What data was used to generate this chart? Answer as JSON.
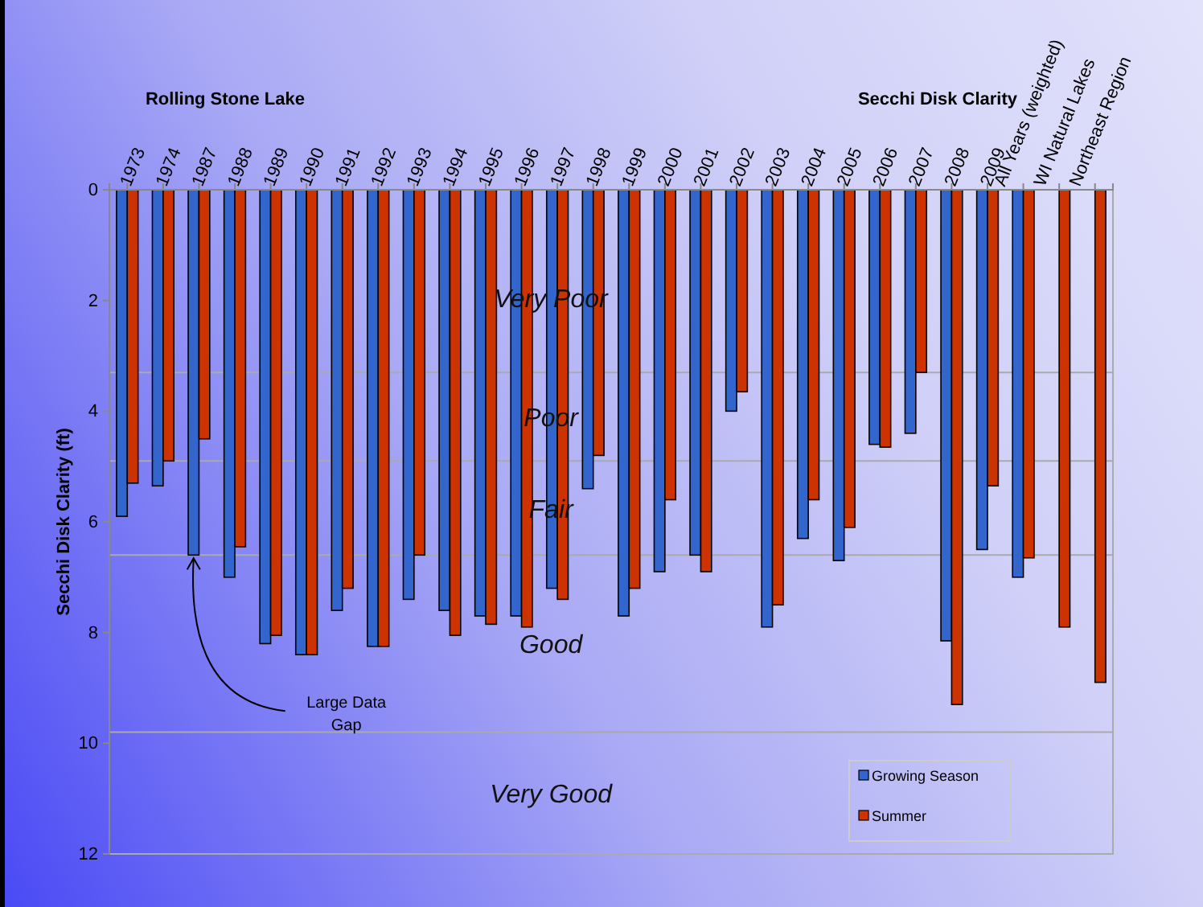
{
  "chart_data": {
    "type": "bar",
    "title": "Secchi Disk Clarity",
    "subtitle": "Rolling Stone Lake",
    "ylabel": "Secchi Disk Clarity (ft)",
    "categories": [
      "1973",
      "1974",
      "1987",
      "1988",
      "1989",
      "1990",
      "1991",
      "1992",
      "1993",
      "1994",
      "1995",
      "1996",
      "1997",
      "1998",
      "1999",
      "2000",
      "2001",
      "2002",
      "2003",
      "2004",
      "2005",
      "2006",
      "2007",
      "2008",
      "2009",
      "All Years (weighted)",
      "WI Natural Lakes",
      "Northeast Region"
    ],
    "series": [
      {
        "name": "Growing Season",
        "color": "#3366cc",
        "values": [
          5.9,
          5.35,
          6.6,
          7.0,
          8.2,
          8.4,
          7.6,
          8.25,
          7.4,
          7.6,
          7.7,
          7.7,
          7.2,
          5.4,
          7.7,
          6.9,
          6.6,
          4.0,
          7.9,
          6.3,
          6.7,
          4.6,
          4.4,
          8.15,
          6.5,
          7.0,
          null,
          null
        ]
      },
      {
        "name": "Summer",
        "color": "#cc3300",
        "values": [
          5.3,
          4.9,
          4.5,
          6.45,
          8.05,
          8.4,
          7.2,
          8.25,
          6.6,
          8.05,
          7.85,
          7.9,
          7.4,
          4.8,
          7.2,
          5.6,
          6.9,
          3.65,
          7.5,
          5.6,
          6.1,
          4.65,
          3.3,
          9.3,
          5.35,
          6.65,
          7.9,
          8.9
        ]
      }
    ],
    "ylim": [
      12,
      0
    ],
    "yticks": [
      0,
      2,
      4,
      6,
      8,
      10,
      12
    ],
    "grid": false,
    "legend": "bottom right",
    "ref_lines": [
      {
        "axis": "y",
        "value": 3.3
      },
      {
        "axis": "y",
        "value": 4.9
      },
      {
        "axis": "y",
        "value": 6.6
      },
      {
        "axis": "y",
        "value": 9.8
      }
    ],
    "annotations": [
      "Large Data Gap",
      "Very Poor",
      "Poor",
      "Fair",
      "Good",
      "Very Good"
    ]
  }
}
